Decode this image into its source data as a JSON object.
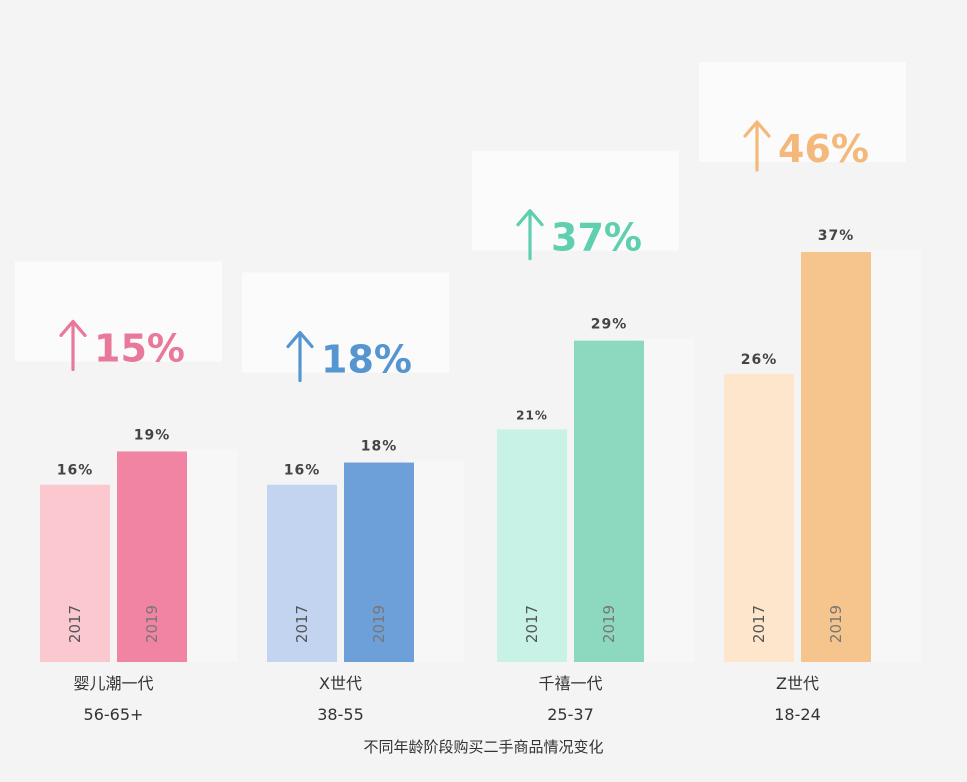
{
  "chart_data": {
    "type": "bar",
    "categories": [
      {
        "name": "婴儿潮一代",
        "age": "56-65+",
        "growth": "15%",
        "colors": {
          "2017": "#fbc8d0",
          "2019": "#f084a2",
          "accent": "#e9799a"
        }
      },
      {
        "name": "X世代",
        "age": "38-55",
        "growth": "18%",
        "colors": {
          "2017": "#c2d4f0",
          "2019": "#6d9fd9",
          "accent": "#5596d0"
        }
      },
      {
        "name": "千禧一代",
        "age": "25-37",
        "growth": "37%",
        "colors": {
          "2017": "#c9f2e6",
          "2019": "#8dd9bf",
          "accent": "#5fcfb0"
        }
      },
      {
        "name": "Z世代",
        "age": "18-24",
        "growth": "46%",
        "colors": {
          "2017": "#fde6cb",
          "2019": "#f6c58d",
          "accent": "#f3b87a"
        }
      }
    ],
    "series": [
      {
        "name": "2017",
        "values": [
          16,
          16,
          21,
          26
        ],
        "labels": [
          "16%",
          "16%",
          "21%",
          "26%"
        ]
      },
      {
        "name": "2019",
        "values": [
          19,
          18,
          29,
          37
        ],
        "labels": [
          "19%",
          "18%",
          "29%",
          "37%"
        ]
      }
    ],
    "caption": "不同年龄阶段购买二手商品情况变化",
    "ylim": [
      0,
      37
    ],
    "grid": false,
    "legend": "none"
  }
}
